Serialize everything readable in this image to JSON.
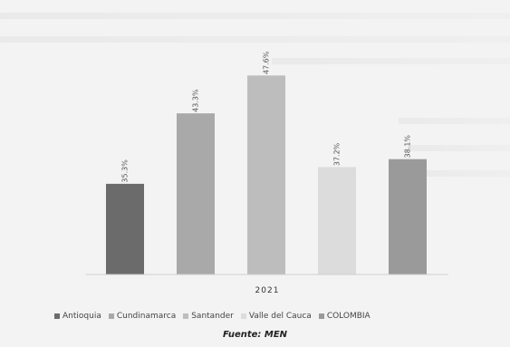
{
  "chart_data": {
    "type": "bar",
    "categories": [
      "2021"
    ],
    "series": [
      {
        "name": "Antioquia",
        "values": [
          35.3
        ],
        "label": "35.3%",
        "color": "#6b6b6b"
      },
      {
        "name": "Cundinamarca",
        "values": [
          43.3
        ],
        "label": "43.3%",
        "color": "#a9a9a9"
      },
      {
        "name": "Santander",
        "values": [
          47.6
        ],
        "label": "47.6%",
        "color": "#bdbdbd"
      },
      {
        "name": "Valle del Cauca",
        "values": [
          37.2
        ],
        "label": "37.2%",
        "color": "#dcdcdc"
      },
      {
        "name": "COLOMBIA",
        "values": [
          38.1
        ],
        "label": "38.1%",
        "color": "#9a9a9a"
      }
    ],
    "title": "",
    "xlabel": "",
    "ylabel": "",
    "ylim": [
      25,
      50
    ],
    "grid": false,
    "legend_position": "bottom"
  },
  "source": "Fuente: MEN"
}
